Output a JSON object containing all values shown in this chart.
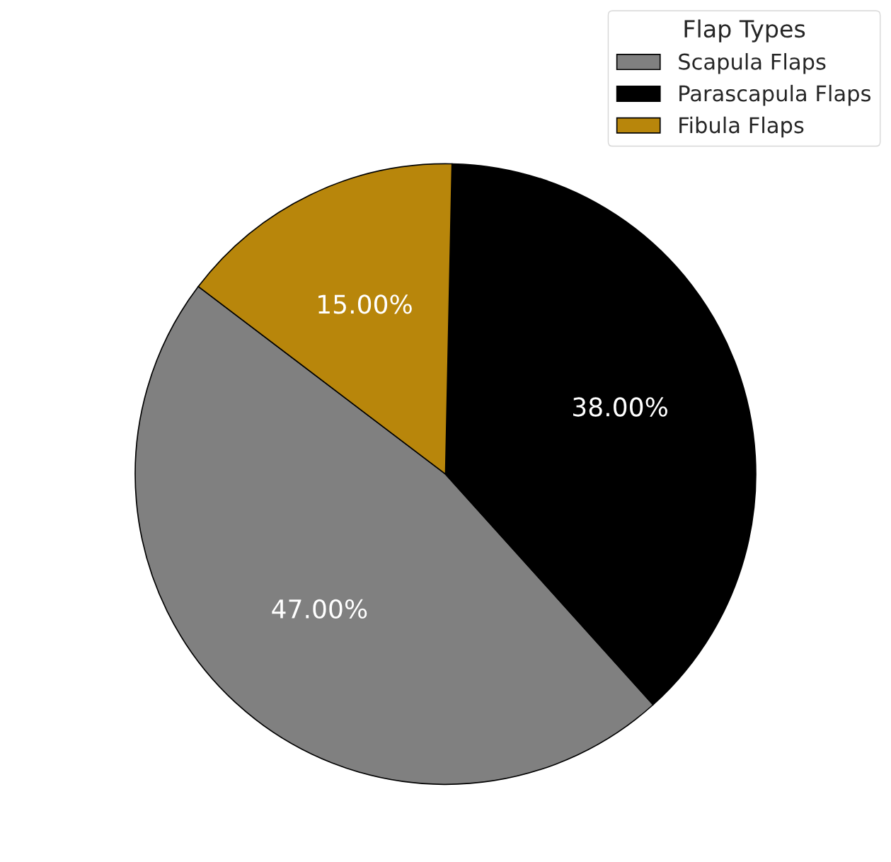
{
  "chart_data": {
    "type": "pie",
    "legend_title": "Flap Types",
    "categories": [
      "Scapula Flaps",
      "Parascapula Flaps",
      "Fibula Flaps"
    ],
    "values": [
      47,
      38,
      15
    ],
    "colors": [
      "#808080",
      "#000000",
      "#b8860b"
    ],
    "value_labels": [
      "47.00%",
      "38.00%",
      "15.00%"
    ],
    "legend": "top right"
  }
}
